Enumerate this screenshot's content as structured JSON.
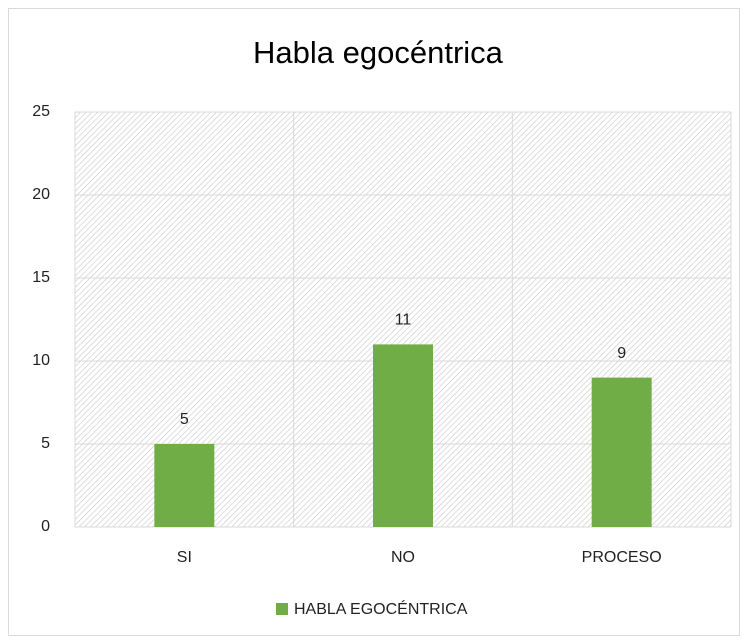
{
  "chart_data": {
    "type": "bar",
    "title": "Habla egocéntrica",
    "categories": [
      "SI",
      "NO",
      "PROCESO"
    ],
    "series": [
      {
        "name": "HABLA EGOCÉNTRICA",
        "color": "#70ad47",
        "values": [
          5,
          11,
          9
        ]
      }
    ],
    "ylim": [
      0,
      25
    ],
    "yticks": [
      0,
      5,
      10,
      15,
      20,
      25
    ],
    "grid": true,
    "legend": "bottom"
  }
}
